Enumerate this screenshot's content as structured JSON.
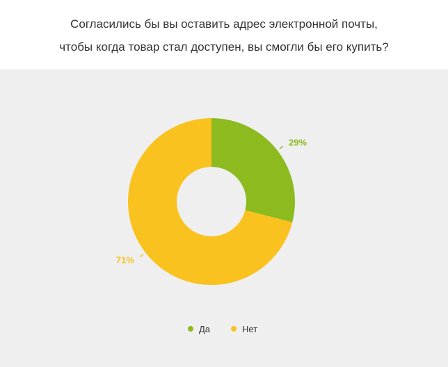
{
  "chart": {
    "title_line1": "Согласились бы вы оставить адрес электронной почты,",
    "title_line2": "чтобы когда товар стал доступен, вы смогли бы его купить?"
  },
  "chart_data": {
    "type": "pie",
    "categories": [
      "Да",
      "Нет"
    ],
    "values": [
      29,
      71
    ],
    "colors": [
      "#8dba1f",
      "#f9c21e"
    ],
    "data_labels": [
      "29%",
      "71%"
    ],
    "legend_position": "bottom"
  }
}
